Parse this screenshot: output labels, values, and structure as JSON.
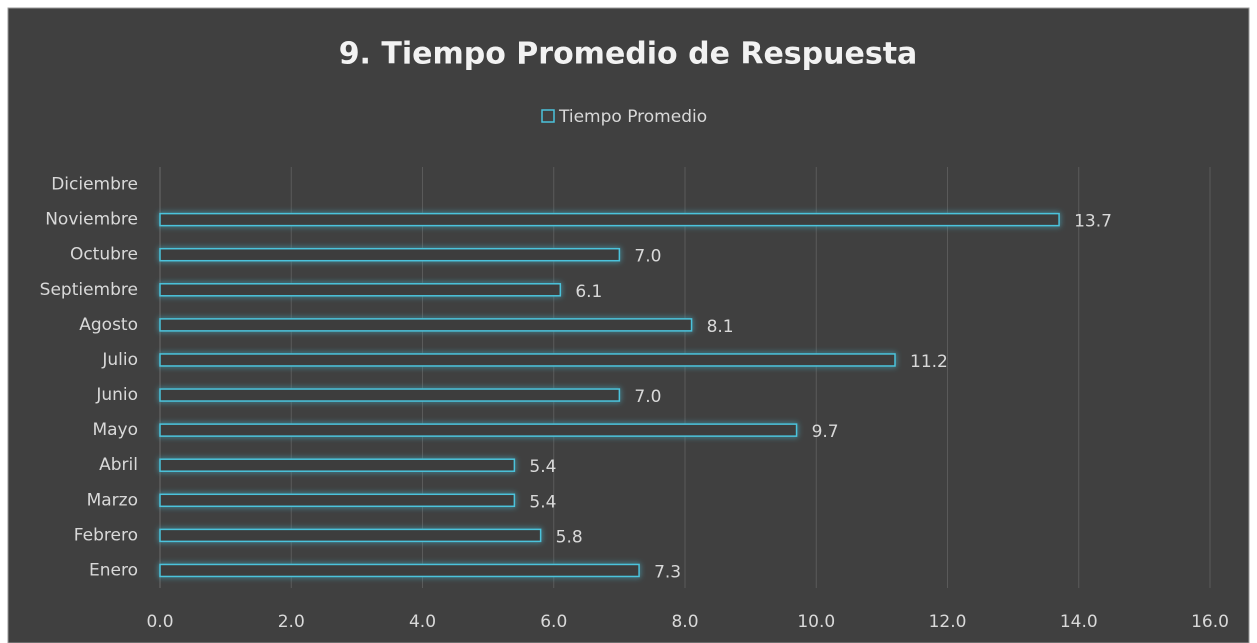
{
  "chart_data": {
    "type": "bar",
    "orientation": "horizontal",
    "title": "9. Tiempo Promedio de Respuesta",
    "categories": [
      "Enero",
      "Febrero",
      "Marzo",
      "Abril",
      "Mayo",
      "Junio",
      "Julio",
      "Agosto",
      "Septiembre",
      "Octubre",
      "Noviembre",
      "Diciembre"
    ],
    "series": [
      {
        "name": "Tiempo Promedio",
        "color": "#4bc3dc",
        "values": [
          7.3,
          5.8,
          5.4,
          5.4,
          9.7,
          7.0,
          11.2,
          8.1,
          6.1,
          7.0,
          13.7,
          null
        ],
        "value_labels": [
          "7.3",
          "5.8",
          "5.4",
          "5.4",
          "9.7",
          "7.0",
          "11.2",
          "8.1",
          "6.1",
          "7.0",
          "13.7",
          null
        ]
      }
    ],
    "xlim": [
      0,
      16
    ],
    "xticks": [
      {
        "value": 0,
        "label": "0.0"
      },
      {
        "value": 2,
        "label": "2.0"
      },
      {
        "value": 4,
        "label": "4.0"
      },
      {
        "value": 6,
        "label": "6.0"
      },
      {
        "value": 8,
        "label": "8.0"
      },
      {
        "value": 10,
        "label": "10.0"
      },
      {
        "value": 12,
        "label": "12.0"
      },
      {
        "value": 14,
        "label": "14.0"
      },
      {
        "value": 16,
        "label": "16.0"
      }
    ],
    "grid": true,
    "legend": "top"
  }
}
